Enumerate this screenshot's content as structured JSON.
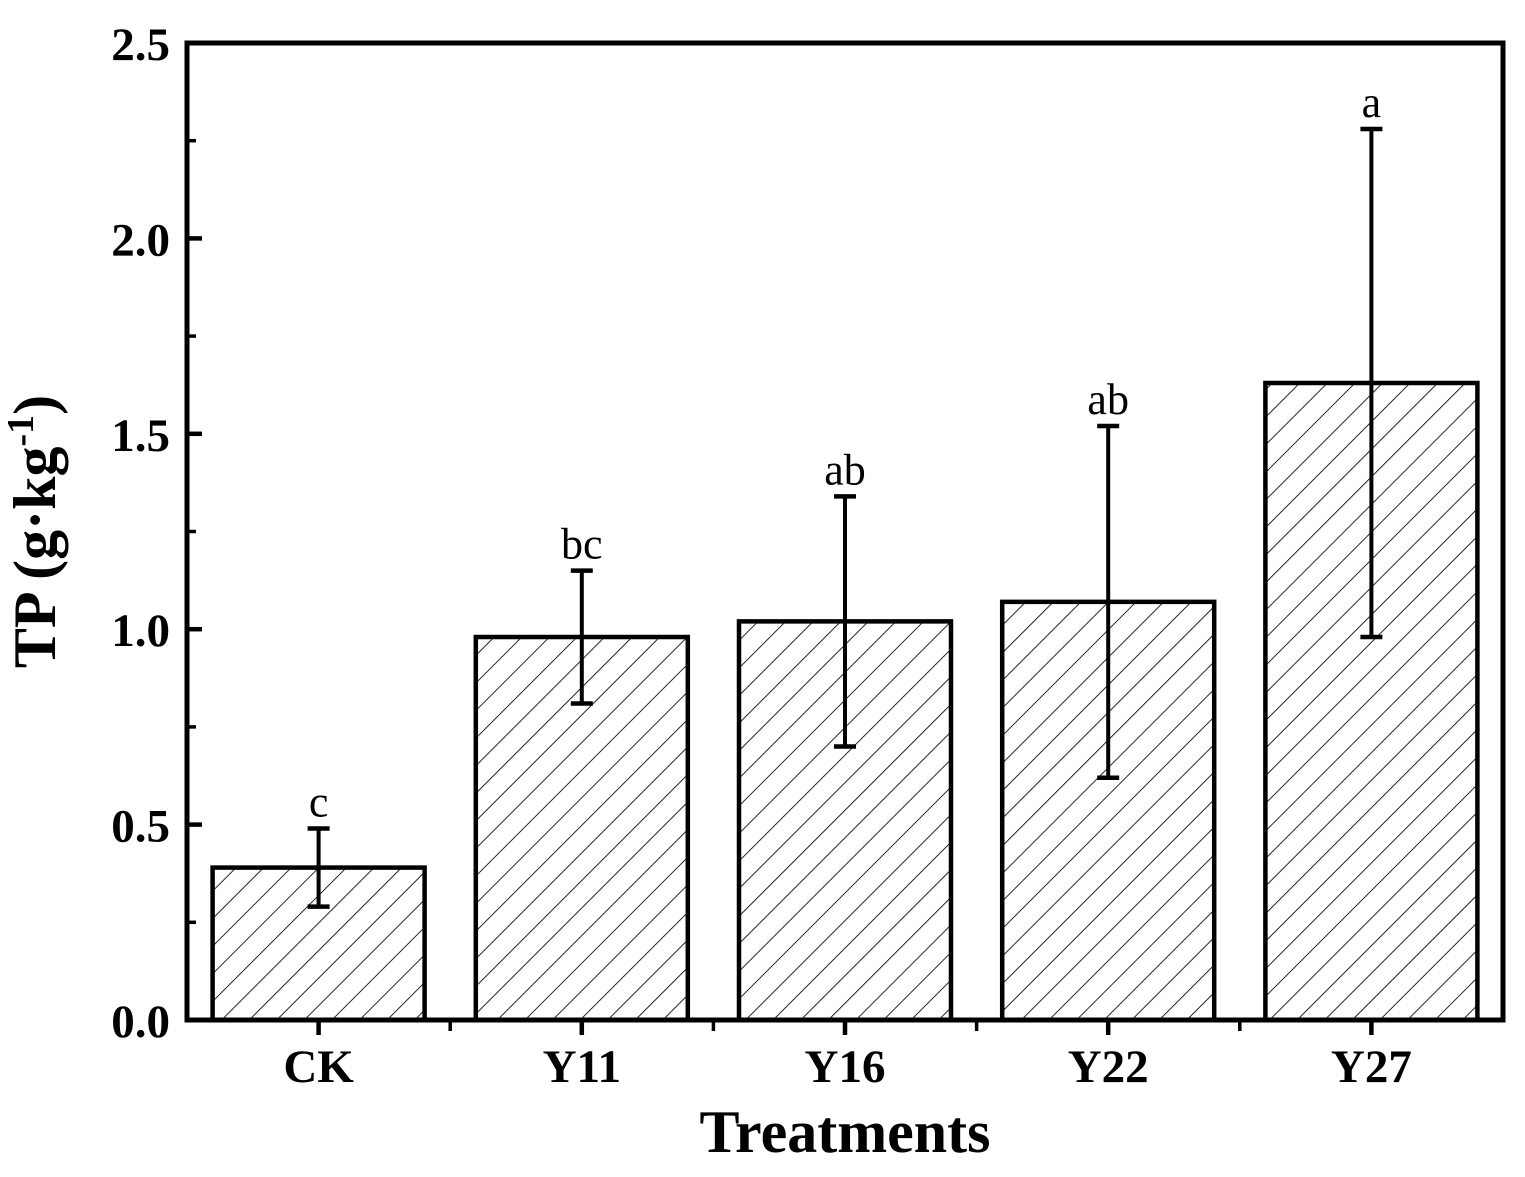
{
  "chart_data": {
    "type": "bar",
    "title": "",
    "xlabel": "Treatments",
    "ylabel": "TP (g·kg⁻¹)",
    "ylabel_parts": {
      "base": "TP (g·kg",
      "superscript": "-1",
      "close": ")"
    },
    "categories": [
      "CK",
      "Y11",
      "Y16",
      "Y22",
      "Y27"
    ],
    "values": [
      0.39,
      0.98,
      1.02,
      1.07,
      1.63
    ],
    "errors": [
      0.1,
      0.17,
      0.32,
      0.45,
      0.65
    ],
    "error_bar_style": "symmetric-with-caps",
    "sig_letters": [
      "c",
      "bc",
      "ab",
      "ab",
      "a"
    ],
    "ylim": [
      0,
      2.5
    ],
    "y_major_step": 0.5,
    "y_minor_step": 0.25,
    "y_tick_labels": [
      "0.0",
      "0.5",
      "1.0",
      "1.5",
      "2.0",
      "2.5"
    ],
    "x_minor_ticks_at_category_boundaries": true,
    "bar_fill": "white-with-black-diagonal-hatch",
    "grid": false,
    "legend": null,
    "colors": {
      "ink": "#000000",
      "background": "#ffffff"
    }
  }
}
